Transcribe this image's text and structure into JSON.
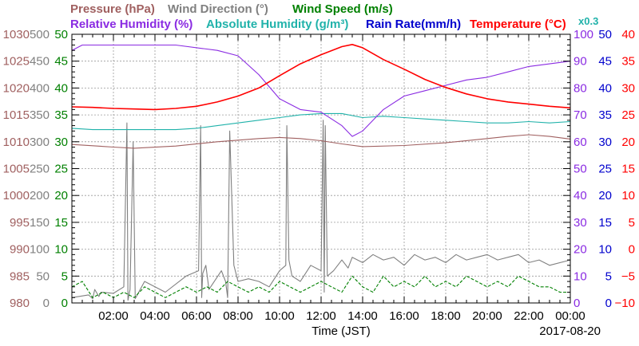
{
  "chart_data": {
    "type": "line",
    "date": "2017-08-20",
    "x_title": "Time (JST)",
    "x_ticks": [
      "02:00",
      "04:00",
      "06:00",
      "08:00",
      "10:00",
      "12:00",
      "14:00",
      "16:00",
      "18:00",
      "20:00",
      "22:00",
      "00:00"
    ],
    "x_range_hours": [
      0,
      24
    ],
    "grid": true,
    "legend": {
      "row1": [
        {
          "label": "Pressure (hPa)",
          "color": "#a06060"
        },
        {
          "label": "Wind Direction (°)",
          "color": "#808080"
        },
        {
          "label": "Wind Speed (m/s)",
          "color": "#008000"
        }
      ],
      "row2": [
        {
          "label": "Relative Humidity (%)",
          "color": "#8a2be2"
        },
        {
          "label": "Absolute Humidity (g/m³)",
          "color": "#20b2aa"
        },
        {
          "label": "Rain Rate(mm/h)",
          "color": "#0000cd"
        },
        {
          "label": "Temperature (°C)",
          "color": "#ff0000"
        }
      ],
      "scale_note": "x0.3"
    },
    "axes": {
      "pressure": {
        "color": "#a06060",
        "range": [
          980,
          1030
        ],
        "ticks": [
          "1030",
          "1025",
          "1020",
          "1015",
          "1010",
          "1005",
          "1000",
          "995",
          "990",
          "985",
          "980"
        ]
      },
      "wind_direction": {
        "color": "#808080",
        "range": [
          0,
          500
        ],
        "ticks": [
          "500",
          "450",
          "400",
          "350",
          "300",
          "250",
          "200",
          "150",
          "100",
          "50",
          "0"
        ]
      },
      "wind_speed": {
        "color": "#008000",
        "range": [
          0,
          50
        ],
        "ticks": [
          "50",
          "45",
          "40",
          "35",
          "30",
          "25",
          "20",
          "15",
          "10",
          "5",
          "0"
        ]
      },
      "humidity": {
        "color": "#8a2be2",
        "range": [
          0,
          100
        ],
        "ticks": [
          "100",
          "90",
          "80",
          "70",
          "60",
          "50",
          "40",
          "30",
          "20",
          "10",
          "0"
        ]
      },
      "rain_rate": {
        "color": "#0000cd",
        "range": [
          0,
          50
        ],
        "ticks": [
          "50",
          "45",
          "40",
          "35",
          "30",
          "25",
          "20",
          "15",
          "10",
          "5",
          "0"
        ]
      },
      "temperature": {
        "color": "#ff0000",
        "range": [
          -10,
          40
        ],
        "ticks": [
          "40",
          "35",
          "30",
          "25",
          "20",
          "15",
          "10",
          "5",
          "0",
          "−5",
          "−10"
        ]
      }
    },
    "series": [
      {
        "name": "Temperature (°C)",
        "axis": "temperature",
        "color": "#ff0000",
        "x": [
          0,
          1,
          2,
          3,
          4,
          5,
          6,
          7,
          8,
          9,
          10,
          11,
          12,
          13,
          13.5,
          14,
          15,
          16,
          17,
          18,
          19,
          20,
          21,
          22,
          23,
          24
        ],
        "values": [
          26.5,
          26.4,
          26.2,
          26.1,
          26.0,
          26.2,
          26.6,
          27.4,
          28.5,
          30.0,
          32.3,
          34.5,
          36.2,
          37.7,
          38.1,
          37.5,
          35.3,
          33.5,
          31.6,
          30.1,
          28.9,
          28.0,
          27.4,
          27.0,
          26.6,
          26.3
        ]
      },
      {
        "name": "Relative Humidity (%)",
        "axis": "humidity",
        "color": "#8a2be2",
        "x": [
          0,
          0.5,
          5,
          7,
          8,
          9,
          10,
          10.5,
          11,
          12,
          13,
          13.5,
          14,
          15,
          16,
          17,
          18,
          19,
          20,
          21,
          22,
          23,
          24
        ],
        "values": [
          94,
          96,
          96,
          94,
          92,
          85,
          76,
          74,
          72,
          71,
          66,
          62,
          64,
          72,
          77,
          79,
          81,
          83,
          84,
          86,
          88,
          89,
          90
        ]
      },
      {
        "name": "Absolute Humidity (g/m³)",
        "axis": "humidity",
        "color": "#20b2aa",
        "x": [
          0,
          1,
          2,
          3,
          4,
          5,
          6,
          7,
          8,
          9,
          10,
          11,
          12,
          13,
          14,
          15,
          16,
          17,
          18,
          19,
          20,
          21,
          22,
          23,
          24
        ],
        "values": [
          65,
          64.5,
          64.5,
          64.5,
          64.5,
          64.5,
          65,
          66,
          67,
          68,
          69,
          70,
          70.5,
          70.5,
          69,
          69.5,
          69,
          68.5,
          68,
          67.5,
          67,
          67,
          67.5,
          67,
          67.5
        ]
      },
      {
        "name": "Pressure (hPa)",
        "axis": "pressure",
        "color": "#a06060",
        "x": [
          0,
          2,
          3,
          5,
          7,
          9,
          10,
          11,
          12,
          13,
          14,
          16,
          18,
          20,
          21,
          22,
          23,
          24
        ],
        "values": [
          1009.5,
          1009.0,
          1008.8,
          1009.2,
          1010.0,
          1010.6,
          1010.8,
          1010.6,
          1010.2,
          1009.6,
          1009.1,
          1009.3,
          1009.8,
          1010.6,
          1011.0,
          1011.3,
          1011.0,
          1010.5
        ]
      },
      {
        "name": "Wind Direction (°)",
        "axis": "wind_direction",
        "color": "#808080",
        "x": [
          0,
          0.8,
          1.0,
          1.1,
          1.3,
          1.4,
          2.0,
          2.5,
          2.65,
          2.7,
          2.8,
          2.95,
          3.05,
          3.5,
          4.5,
          5.5,
          6.1,
          6.2,
          6.25,
          6.3,
          6.45,
          6.6,
          7.2,
          7.4,
          7.5,
          7.6,
          7.8,
          8.0,
          8.5,
          9.0,
          9.5,
          10.0,
          10.3,
          10.35,
          10.45,
          10.6,
          11.0,
          11.5,
          12.0,
          12.1,
          12.15,
          12.2,
          12.3,
          12.6,
          13.0,
          13.3,
          13.5,
          14.0,
          14.5,
          15.0,
          15.5,
          16.0,
          16.5,
          17.0,
          17.5,
          18.0,
          18.5,
          19.0,
          19.5,
          20.0,
          20.5,
          21.0,
          21.5,
          22.0,
          22.5,
          23.0,
          24.0
        ],
        "values": [
          10,
          15,
          8,
          25,
          12,
          20,
          18,
          30,
          335,
          5,
          25,
          300,
          8,
          40,
          20,
          50,
          60,
          330,
          10,
          55,
          70,
          25,
          60,
          40,
          10,
          320,
          70,
          40,
          45,
          40,
          30,
          60,
          70,
          330,
          80,
          50,
          40,
          70,
          60,
          340,
          20,
          330,
          50,
          60,
          80,
          65,
          85,
          75,
          90,
          80,
          85,
          70,
          90,
          80,
          85,
          75,
          90,
          80,
          85,
          90,
          80,
          85,
          90,
          75,
          80,
          70,
          80
        ]
      },
      {
        "name": "Wind Speed (m/s)",
        "axis": "wind_speed",
        "color": "#008000",
        "x": [
          0,
          0.5,
          1,
          1.5,
          2,
          2.5,
          3,
          3.5,
          4,
          4.5,
          5,
          5.5,
          6,
          6.5,
          7,
          7.5,
          8,
          8.5,
          9,
          9.5,
          10,
          10.5,
          11,
          11.5,
          12,
          12.5,
          13,
          13.5,
          14,
          14.5,
          15,
          15.5,
          16,
          16.5,
          17,
          17.5,
          18,
          18.5,
          19,
          19.5,
          20,
          20.5,
          21,
          21.5,
          22,
          22.5,
          23,
          23.5,
          24
        ],
        "values": [
          3,
          4,
          1,
          2,
          1,
          2,
          1,
          3,
          2,
          1,
          2,
          3,
          2,
          3,
          2,
          4,
          3,
          2,
          3,
          2,
          4,
          3,
          2,
          3,
          4,
          3,
          2,
          5,
          3,
          2,
          5,
          3,
          4,
          3,
          5,
          3,
          4,
          3,
          5,
          4,
          3,
          4,
          3,
          5,
          4,
          3,
          3,
          2,
          2
        ]
      },
      {
        "name": "Rain Rate(mm/h)",
        "axis": "rain_rate",
        "color": "#0000cd",
        "x": [
          0,
          24
        ],
        "values": [
          0,
          0
        ]
      }
    ]
  }
}
